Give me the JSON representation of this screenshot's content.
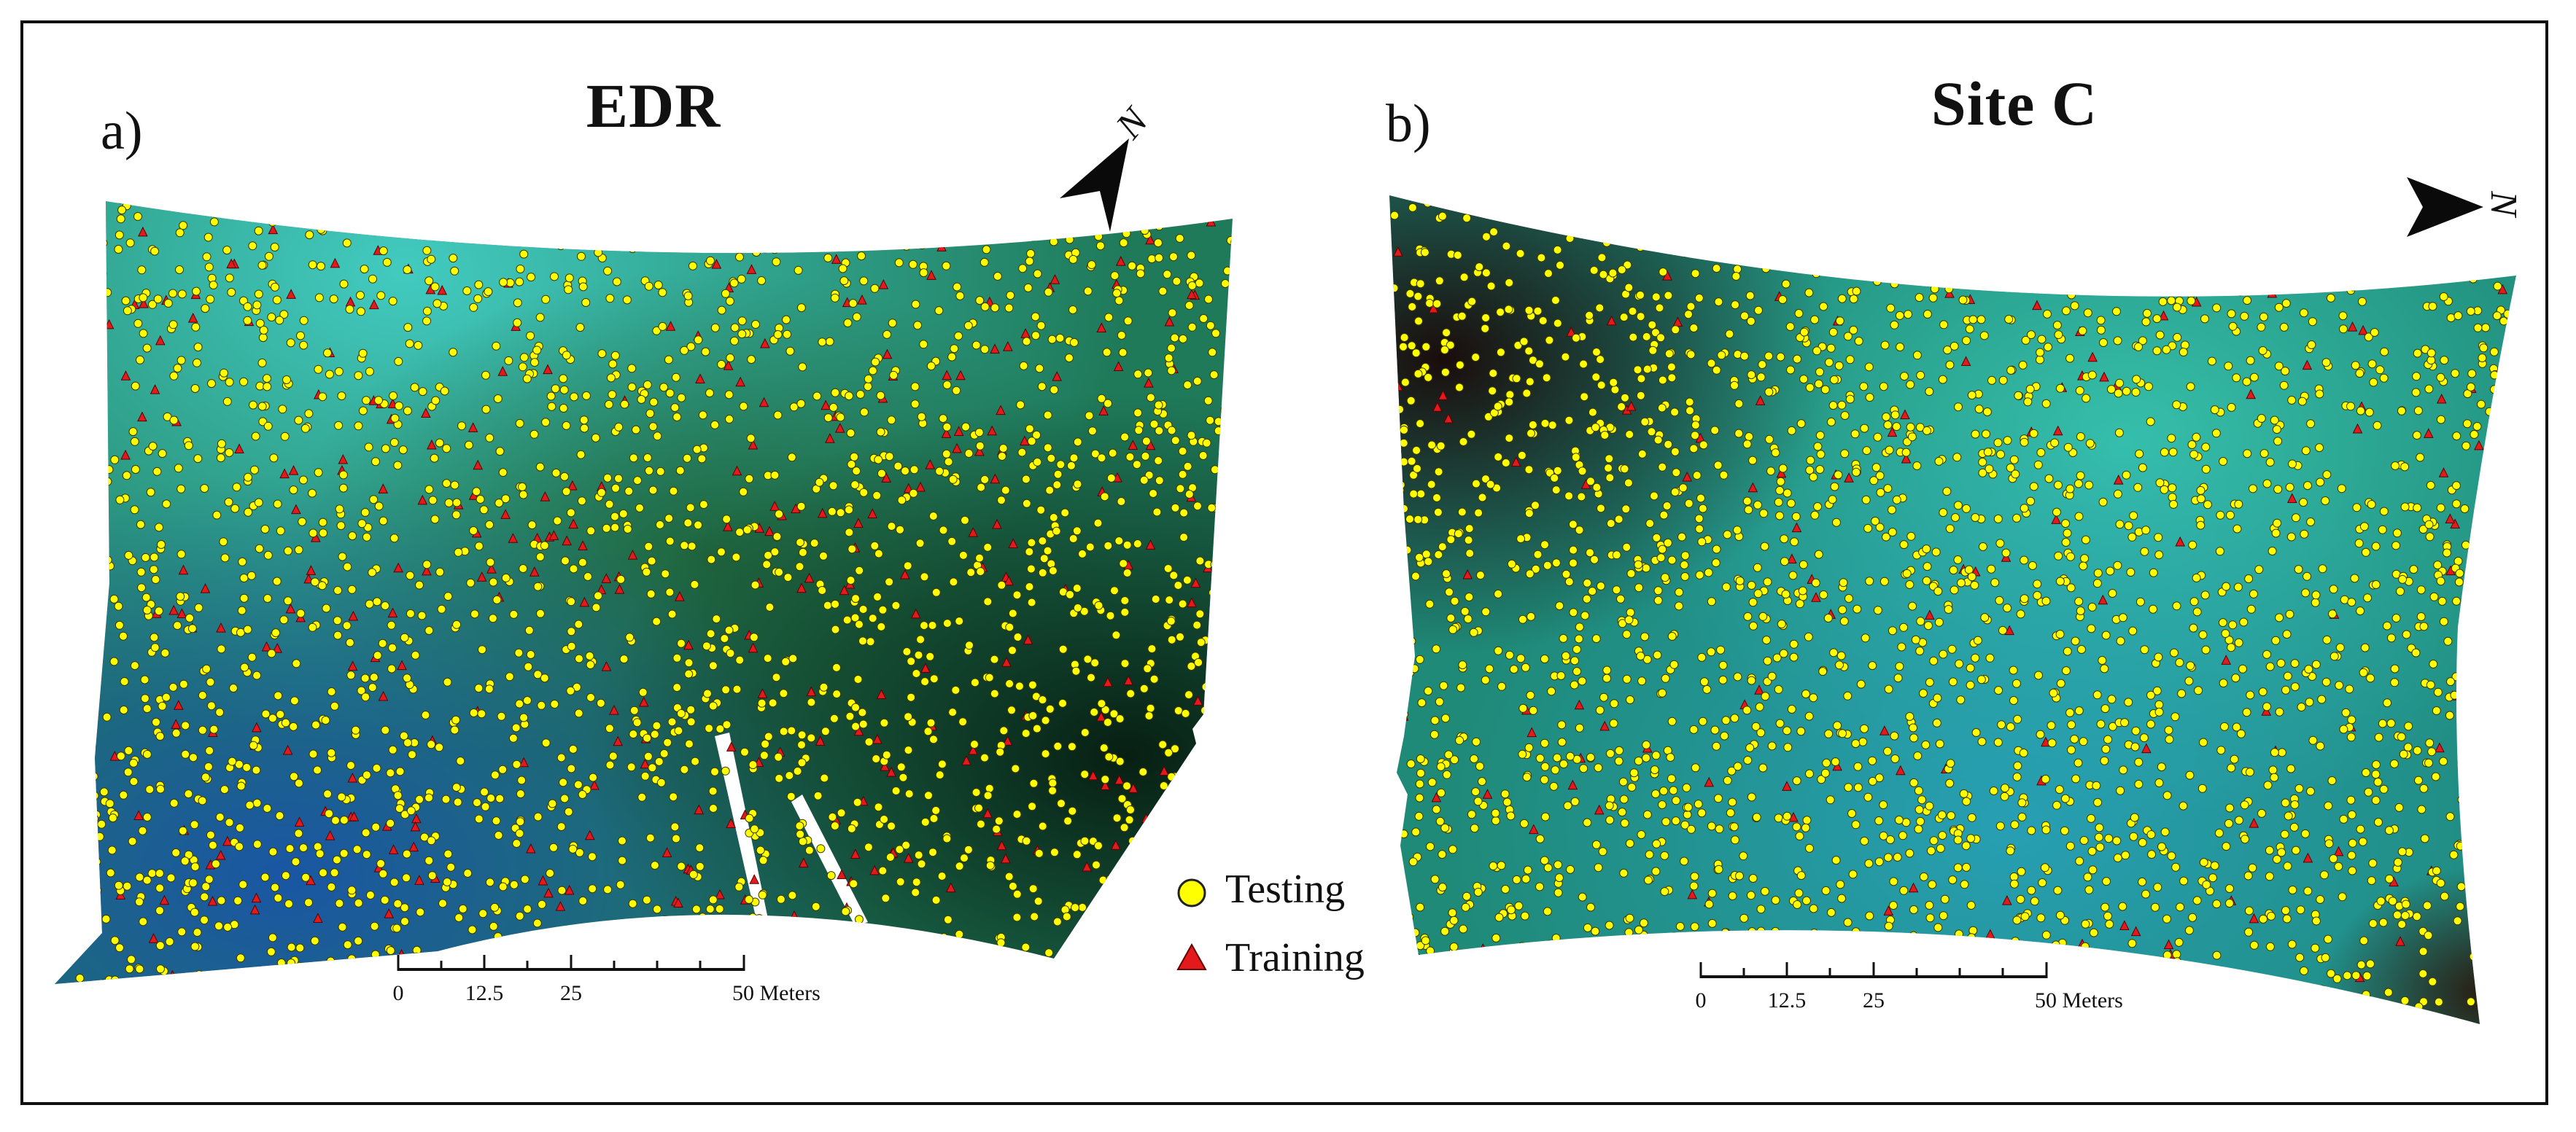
{
  "panels": [
    {
      "id": "a",
      "label": "a)",
      "title": "EDR",
      "north_letter": "N",
      "scalebar": {
        "ticks": [
          "0",
          "12.5",
          "25",
          "50 Meters"
        ]
      }
    },
    {
      "id": "b",
      "label": "b)",
      "title": "Site C",
      "north_letter": "N",
      "scalebar": {
        "ticks": [
          "0",
          "12.5",
          "25",
          "50 Meters"
        ]
      }
    }
  ],
  "legend": [
    {
      "label": "Testing",
      "symbol": "circle",
      "color": "#ffff00"
    },
    {
      "label": "Training",
      "symbol": "triangle",
      "color": "#e31a1c"
    }
  ],
  "colors": {
    "teal": "#2cc8c0",
    "green": "#1f6a3a",
    "blue": "#1a5aa0",
    "dark": "#0c2418",
    "point_testing": "#ffff00",
    "point_training": "#e31a1c"
  }
}
